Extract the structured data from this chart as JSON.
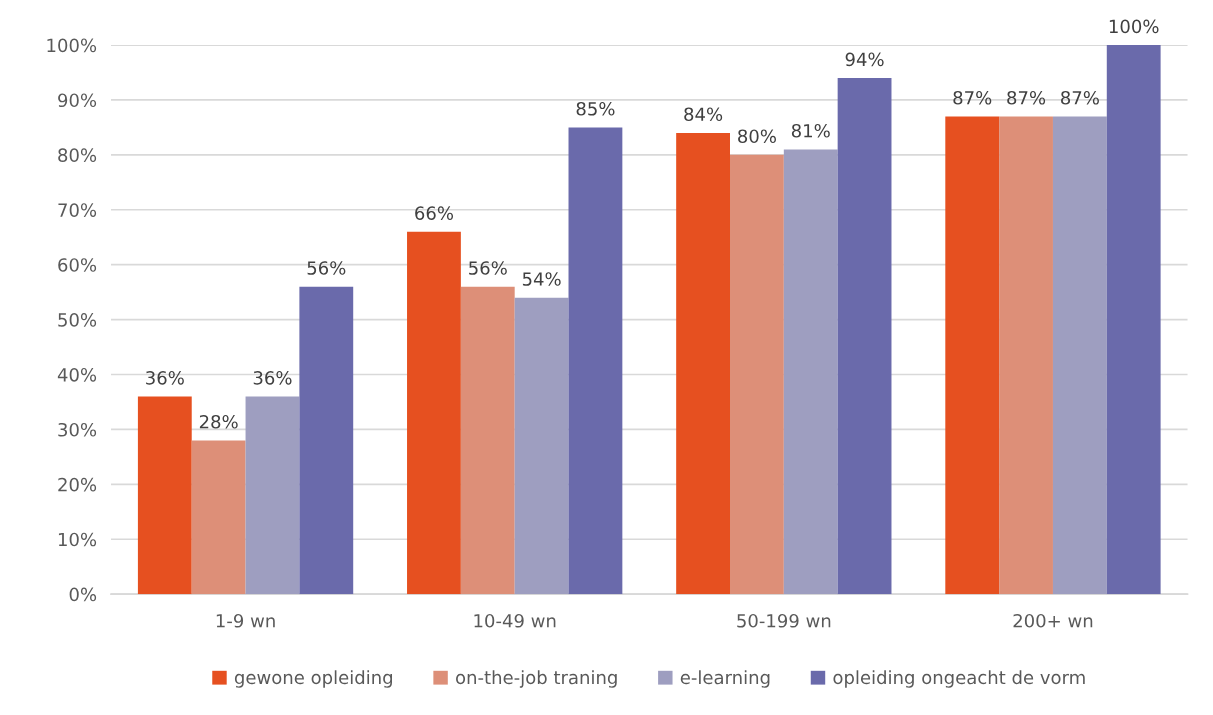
{
  "chart_data": {
    "type": "bar",
    "categories": [
      "1-9 wn",
      "10-49 wn",
      "50-199 wn",
      "200+ wn"
    ],
    "series": [
      {
        "name": "gewone opleiding",
        "color": "#e65020",
        "values": [
          36,
          66,
          84,
          87
        ],
        "value_labels": [
          "36%",
          "66%",
          "84%",
          "87%"
        ]
      },
      {
        "name": "on-the-job traning",
        "color": "#dd8f78",
        "values": [
          28,
          56,
          80,
          87
        ],
        "value_labels": [
          "28%",
          "56%",
          "80%",
          "87%"
        ]
      },
      {
        "name": "e-learning",
        "color": "#9e9ec0",
        "values": [
          36,
          54,
          81,
          87
        ],
        "value_labels": [
          "36%",
          "54%",
          "81%",
          "87%"
        ]
      },
      {
        "name": "opleiding ongeacht de vorm",
        "color": "#6a6aab",
        "values": [
          56,
          85,
          94,
          100
        ],
        "value_labels": [
          "56%",
          "85%",
          "94%",
          "100%"
        ]
      }
    ],
    "ylim": [
      0,
      100
    ],
    "yticks": [
      {
        "value": 0,
        "label": "0%"
      },
      {
        "value": 10,
        "label": "10%"
      },
      {
        "value": 20,
        "label": "20%"
      },
      {
        "value": 30,
        "label": "30%"
      },
      {
        "value": 40,
        "label": "40%"
      },
      {
        "value": 50,
        "label": "50%"
      },
      {
        "value": 60,
        "label": "60%"
      },
      {
        "value": 70,
        "label": "70%"
      },
      {
        "value": 80,
        "label": "80%"
      },
      {
        "value": 90,
        "label": "90%"
      },
      {
        "value": 100,
        "label": "100%"
      }
    ],
    "grid": "y",
    "legend": "bottom"
  }
}
